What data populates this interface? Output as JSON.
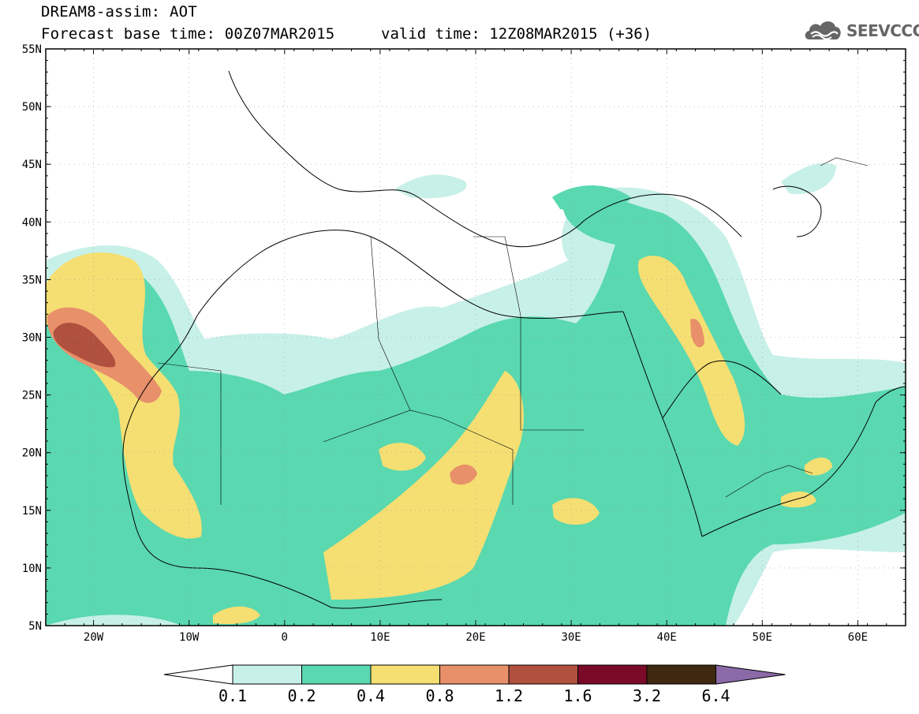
{
  "header": {
    "title": "DREAM8-assim: AOT",
    "base_time": "Forecast base time: 00Z07MAR2015",
    "valid_time": "valid time: 12Z08MAR2015 (+36)",
    "brand": "SEEVCCC"
  },
  "map": {
    "region": "North Africa, Middle East and Europe",
    "lon_range": [
      -25,
      65
    ],
    "lat_range": [
      5,
      55
    ],
    "lat_ticks": [
      "55N",
      "50N",
      "45N",
      "40N",
      "35N",
      "30N",
      "25N",
      "20N",
      "15N",
      "10N",
      "5N"
    ],
    "lon_ticks": [
      "20W",
      "10W",
      "0",
      "10E",
      "20E",
      "30E",
      "40E",
      "50E",
      "60E"
    ],
    "colors": {
      "0.1-0.2": "#c7f0e8",
      "0.2-0.4": "#5ad8b0",
      "0.4-0.8": "#f5df72",
      "0.8-1.2": "#e8906a",
      "1.2-1.6": "#b0503e",
      "1.6-3.2": "#7a0a28",
      "3.2-6.4": "#3e2810",
      "above-6.4": "#8b6aa8"
    }
  },
  "legend": {
    "labels": [
      "0.1",
      "0.2",
      "0.4",
      "0.8",
      "1.2",
      "1.6",
      "3.2",
      "6.4"
    ]
  }
}
